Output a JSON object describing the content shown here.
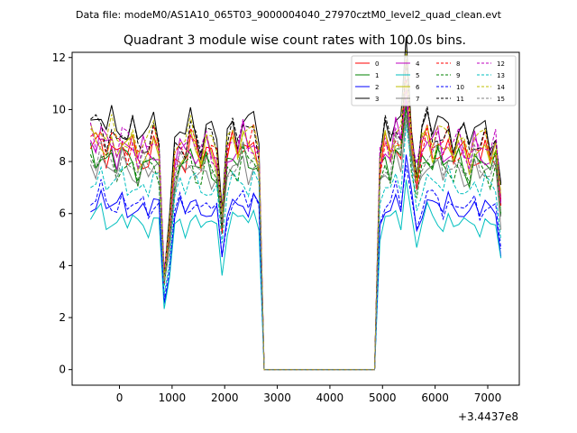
{
  "header": {
    "datafile": "Data file: modeM0/AS1A10_065T03_9000004040_27970cztM0_level2_quad_clean.evt"
  },
  "chart_data": {
    "type": "line",
    "title": "Quadrant 3 module wise count rates with 100.0s bins.",
    "xlabel": "",
    "ylabel": "",
    "x_offset_label": "+3.4437e8",
    "xlim": [
      -900,
      7600
    ],
    "ylim": [
      -0.6,
      12.2
    ],
    "xticks": [
      0,
      1000,
      2000,
      3000,
      4000,
      5000,
      6000,
      7000
    ],
    "yticks": [
      0,
      2,
      4,
      6,
      8,
      10,
      12
    ],
    "grid": false,
    "legend_position": "top-right",
    "legend_columns": 4,
    "series_meta": [
      {
        "name": "0",
        "color": "#ff0000",
        "dash": "solid"
      },
      {
        "name": "1",
        "color": "#008000",
        "dash": "solid"
      },
      {
        "name": "2",
        "color": "#0000ff",
        "dash": "solid"
      },
      {
        "name": "3",
        "color": "#000000",
        "dash": "solid"
      },
      {
        "name": "4",
        "color": "#bf00bf",
        "dash": "solid"
      },
      {
        "name": "5",
        "color": "#00bfbf",
        "dash": "solid"
      },
      {
        "name": "6",
        "color": "#bfbf00",
        "dash": "solid"
      },
      {
        "name": "7",
        "color": "#808080",
        "dash": "solid"
      },
      {
        "name": "8",
        "color": "#ff0000",
        "dash": "dashed"
      },
      {
        "name": "9",
        "color": "#008000",
        "dash": "dashed"
      },
      {
        "name": "10",
        "color": "#0000ff",
        "dash": "dashed"
      },
      {
        "name": "11",
        "color": "#000000",
        "dash": "dashed"
      },
      {
        "name": "12",
        "color": "#bf00bf",
        "dash": "dashed"
      },
      {
        "name": "13",
        "color": "#00bfbf",
        "dash": "dashed"
      },
      {
        "name": "14",
        "color": "#bfbf00",
        "dash": "dashed"
      },
      {
        "name": "15",
        "color": "#808080",
        "dash": "dashed"
      }
    ],
    "x": [
      -550,
      -450,
      -350,
      -250,
      -150,
      -50,
      50,
      150,
      250,
      350,
      450,
      550,
      650,
      750,
      850,
      950,
      1050,
      1150,
      1250,
      1350,
      1450,
      1550,
      1650,
      1750,
      1850,
      1950,
      2050,
      2150,
      2250,
      2350,
      2450,
      2550,
      2650,
      2750,
      2850,
      2950,
      3050,
      3150,
      3250,
      3350,
      3450,
      3550,
      3650,
      3750,
      3850,
      3950,
      4050,
      4150,
      4250,
      4350,
      4450,
      4550,
      4650,
      4750,
      4850,
      4950,
      5050,
      5150,
      5250,
      5350,
      5450,
      5550,
      5650,
      5750,
      5850,
      5950,
      6050,
      6150,
      6250,
      6350,
      6450,
      6550,
      6650,
      6750,
      6850,
      6950,
      7050,
      7150,
      7250
    ],
    "active_profile": [
      1.0,
      0.98,
      1.03,
      0.96,
      0.99,
      0.94,
      1.0,
      0.95,
      0.98,
      0.92,
      0.96,
      0.93,
      0.99,
      0.95,
      0.4,
      0.6,
      0.9,
      0.97,
      0.93,
      1.0,
      0.96,
      0.91,
      0.98,
      0.94,
      0.92,
      0.65,
      0.93,
      0.99,
      0.95,
      1.02,
      0.96,
      1.0,
      0.93,
      0.0,
      0.0,
      0.0,
      0.0,
      0.0,
      0.0,
      0.0,
      0.0,
      0.0,
      0.0,
      0.0,
      0.0,
      0.0,
      0.0,
      0.0,
      0.0,
      0.0,
      0.0,
      0.0,
      0.0,
      0.0,
      0.0,
      0.88,
      0.98,
      0.93,
      1.03,
      0.97,
      1.25,
      0.99,
      0.82,
      0.96,
      1.02,
      0.97,
      1.0,
      0.94,
      0.99,
      0.93,
      0.97,
      0.95,
      0.91,
      0.98,
      0.93,
      0.97,
      0.92,
      0.96,
      0.72
    ],
    "series_levels": [
      8.7,
      8.3,
      6.5,
      9.6,
      8.8,
      5.9,
      8.8,
      8.0,
      8.9,
      8.1,
      6.6,
      9.3,
      9.0,
      7.4,
      9.2,
      8.2
    ]
  }
}
